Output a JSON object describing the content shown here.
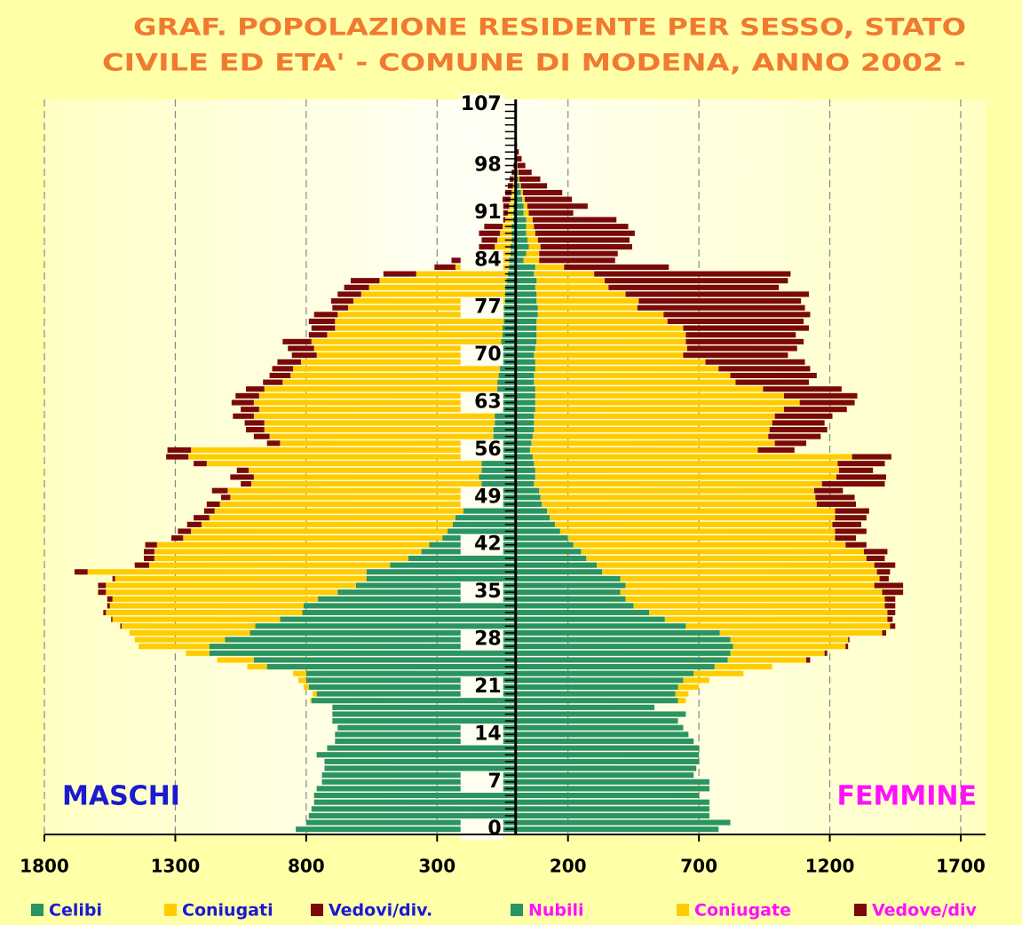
{
  "chart_data": {
    "type": "pyramid",
    "title": [
      "GRAF. POPOLAZIONE RESIDENTE PER SESSO, STATO",
      "CIVILE ED ETA'  - COMUNE DI MODENA, ANNO 2002 -"
    ],
    "sides": {
      "left": {
        "label": "MASCHI",
        "color": "#1a1ad0"
      },
      "right": {
        "label": "FEMMINE",
        "color": "#ff10ff"
      }
    },
    "categories": [
      0,
      null,
      null,
      null,
      null,
      null,
      null,
      7,
      null,
      null,
      null,
      null,
      null,
      null,
      14,
      null,
      null,
      null,
      null,
      null,
      null,
      21,
      null,
      null,
      null,
      null,
      null,
      null,
      28,
      null,
      null,
      null,
      null,
      null,
      null,
      35,
      null,
      null,
      null,
      null,
      null,
      null,
      42,
      null,
      null,
      null,
      null,
      null,
      null,
      49,
      null,
      null,
      null,
      null,
      null,
      null,
      56,
      null,
      null,
      null,
      null,
      null,
      null,
      63,
      null,
      null,
      null,
      null,
      null,
      null,
      70,
      null,
      null,
      null,
      null,
      null,
      null,
      77,
      null,
      null,
      null,
      null,
      null,
      null,
      84,
      null,
      null,
      null,
      null,
      null,
      null,
      91,
      null,
      null,
      null,
      null,
      null,
      null,
      98,
      null,
      null,
      null,
      null,
      null,
      null,
      null,
      null,
      107
    ],
    "xlim": [
      -1800,
      1795
    ],
    "xticks": [
      {
        "value": -1800,
        "label": "1800"
      },
      {
        "value": -1300,
        "label": "1300"
      },
      {
        "value": -800,
        "label": "800"
      },
      {
        "value": -300,
        "label": "300"
      },
      200,
      700,
      1200,
      1700
    ],
    "grid": true,
    "series": [
      {
        "name": "Celibi",
        "color": "#2a9462",
        "side": "left",
        "values": [
          840,
          800,
          790,
          780,
          770,
          770,
          760,
          740,
          740,
          730,
          730,
          760,
          720,
          690,
          690,
          680,
          700,
          700,
          700,
          780,
          760,
          790,
          800,
          800,
          950,
          1000,
          1170,
          1170,
          1110,
          1015,
          995,
          900,
          815,
          810,
          755,
          680,
          610,
          570,
          570,
          480,
          410,
          360,
          330,
          280,
          260,
          240,
          230,
          200,
          180,
          150,
          140,
          130,
          140,
          130,
          130,
          130,
          90,
          90,
          85,
          85,
          80,
          80,
          75,
          75,
          75,
          70,
          70,
          65,
          60,
          60,
          55,
          55,
          55,
          50,
          50,
          45,
          45,
          45,
          40,
          40,
          40,
          35,
          30,
          25,
          25,
          20,
          20,
          15,
          15,
          15,
          10,
          10,
          10,
          5,
          5,
          5,
          0,
          0,
          0,
          0,
          0,
          0,
          0,
          0,
          0,
          0,
          0,
          0
        ]
      },
      {
        "name": "Coniugati",
        "color": "#ffcc00",
        "side": "left",
        "values": [
          0,
          0,
          0,
          0,
          0,
          0,
          0,
          0,
          0,
          0,
          0,
          0,
          0,
          0,
          0,
          0,
          0,
          0,
          0,
          5,
          15,
          20,
          30,
          50,
          75,
          140,
          90,
          270,
          345,
          460,
          510,
          640,
          750,
          740,
          785,
          885,
          955,
          960,
          1065,
          920,
          970,
          1020,
          1040,
          990,
          980,
          960,
          940,
          950,
          950,
          940,
          960,
          880,
          860,
          890,
          1050,
          1120,
          1150,
          810,
          855,
          875,
          880,
          920,
          905,
          925,
          905,
          890,
          820,
          795,
          790,
          760,
          705,
          715,
          725,
          670,
          640,
          645,
          635,
          595,
          580,
          550,
          520,
          485,
          350,
          205,
          75,
          90,
          60,
          55,
          45,
          35,
          30,
          20,
          15,
          15,
          10,
          5,
          8,
          5,
          3,
          0,
          0,
          0,
          0,
          0,
          0,
          0,
          0,
          0
        ]
      },
      {
        "name": "Vedovi/div.",
        "color": "#7a0a0a",
        "side": "left",
        "values": [
          0,
          0,
          0,
          0,
          0,
          0,
          0,
          0,
          0,
          0,
          0,
          0,
          0,
          0,
          0,
          0,
          0,
          0,
          0,
          0,
          0,
          0,
          0,
          0,
          0,
          0,
          0,
          0,
          0,
          0,
          5,
          5,
          10,
          10,
          20,
          30,
          30,
          10,
          50,
          55,
          40,
          40,
          45,
          45,
          50,
          55,
          60,
          40,
          50,
          35,
          60,
          40,
          90,
          45,
          50,
          85,
          90,
          50,
          60,
          70,
          75,
          80,
          70,
          85,
          90,
          70,
          75,
          80,
          80,
          90,
          95,
          100,
          110,
          70,
          90,
          100,
          90,
          60,
          85,
          90,
          95,
          110,
          125,
          80,
          145,
          70,
          60,
          60,
          80,
          70,
          60,
          50,
          40,
          30,
          25,
          20,
          15,
          10,
          5,
          3,
          0,
          0,
          0,
          0,
          0,
          0,
          0,
          0
        ]
      },
      {
        "name": "Nubili",
        "color": "#2a9462",
        "side": "right",
        "values": [
          775,
          820,
          740,
          740,
          740,
          700,
          740,
          740,
          680,
          690,
          700,
          700,
          700,
          680,
          660,
          640,
          620,
          650,
          530,
          620,
          610,
          620,
          640,
          680,
          760,
          810,
          820,
          830,
          820,
          780,
          650,
          570,
          510,
          450,
          420,
          400,
          420,
          400,
          330,
          310,
          270,
          250,
          220,
          200,
          170,
          150,
          130,
          120,
          100,
          95,
          90,
          70,
          75,
          75,
          70,
          65,
          55,
          60,
          65,
          70,
          70,
          70,
          75,
          75,
          75,
          75,
          70,
          70,
          75,
          75,
          70,
          75,
          80,
          80,
          80,
          80,
          85,
          85,
          80,
          80,
          75,
          80,
          70,
          75,
          30,
          40,
          50,
          45,
          40,
          40,
          40,
          30,
          30,
          25,
          20,
          15,
          10,
          8,
          5,
          3,
          2,
          0,
          0,
          0,
          0,
          0,
          0,
          0
        ]
      },
      {
        "name": "Coniugate",
        "color": "#ffcc00",
        "side": "right",
        "values": [
          0,
          0,
          0,
          0,
          0,
          0,
          0,
          0,
          0,
          0,
          0,
          0,
          0,
          0,
          0,
          0,
          0,
          0,
          0,
          30,
          50,
          80,
          100,
          190,
          220,
          300,
          360,
          430,
          450,
          620,
          780,
          850,
          910,
          960,
          990,
          1000,
          950,
          990,
          1050,
          1060,
          1070,
          1080,
          1040,
          1020,
          1050,
          1060,
          1090,
          1100,
          1050,
          1050,
          1050,
          1100,
          1150,
          1160,
          1160,
          1220,
          870,
          930,
          900,
          900,
          910,
          920,
          950,
          1010,
          950,
          870,
          770,
          750,
          700,
          650,
          570,
          580,
          570,
          570,
          560,
          500,
          480,
          380,
          390,
          340,
          280,
          260,
          230,
          110,
          60,
          50,
          45,
          40,
          35,
          30,
          25,
          20,
          15,
          10,
          8,
          5,
          4,
          3,
          2,
          0,
          0,
          0,
          0,
          0,
          0,
          0,
          0,
          0
        ]
      },
      {
        "name": "Vedove/div",
        "color": "#7a0a0a",
        "side": "right",
        "values": [
          0,
          0,
          0,
          0,
          0,
          0,
          0,
          0,
          0,
          0,
          0,
          0,
          0,
          0,
          0,
          0,
          0,
          0,
          0,
          0,
          0,
          0,
          0,
          0,
          0,
          15,
          10,
          10,
          5,
          15,
          20,
          20,
          30,
          40,
          40,
          80,
          110,
          35,
          50,
          80,
          70,
          90,
          80,
          80,
          120,
          110,
          120,
          130,
          150,
          150,
          110,
          240,
          190,
          130,
          180,
          150,
          140,
          120,
          200,
          220,
          200,
          220,
          240,
          210,
          280,
          300,
          280,
          330,
          350,
          380,
          400,
          420,
          450,
          420,
          480,
          520,
          560,
          640,
          620,
          700,
          650,
          700,
          750,
          400,
          290,
          300,
          350,
          350,
          380,
          360,
          320,
          170,
          230,
          180,
          150,
          100,
          80,
          50,
          30,
          20,
          10,
          5,
          3,
          0,
          0,
          0,
          0,
          0
        ]
      }
    ]
  }
}
